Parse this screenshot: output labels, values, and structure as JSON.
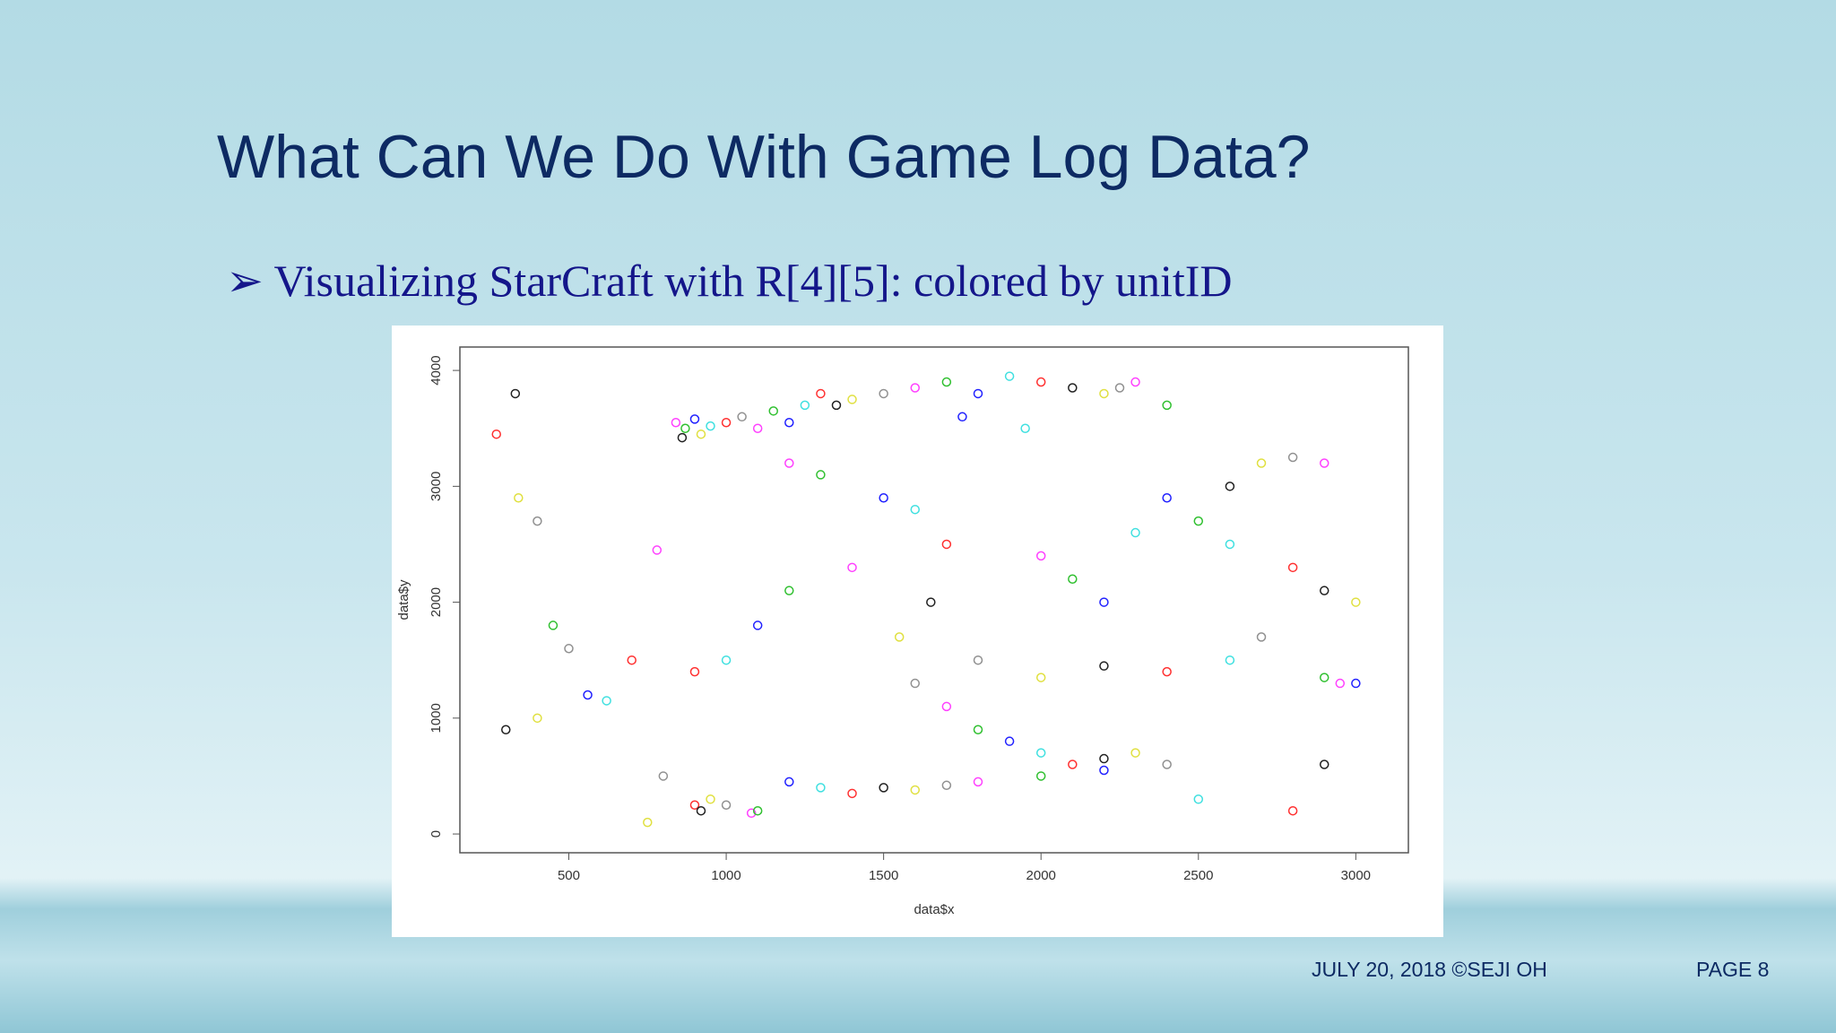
{
  "slide": {
    "title": "What Can We Do With Game Log Data?",
    "bullet": "Visualizing StarCraft with R[4][5]: colored by unitID",
    "footer": "JULY 20, 2018 ©SEJI OH",
    "page": "PAGE 8"
  },
  "chart_data": {
    "type": "scatter",
    "xlabel": "data$x",
    "ylabel": "data$y",
    "xlim": [
      154,
      3167
    ],
    "ylim": [
      -162,
      4202
    ],
    "xticks": [
      500,
      1000,
      1500,
      2000,
      2500,
      3000
    ],
    "yticks": [
      0,
      1000,
      2000,
      3000,
      4000
    ],
    "palette": [
      "#ff40ff",
      "#30c030",
      "#2020ff",
      "#40e0e0",
      "#ff3030",
      "#202020",
      "#e0e040",
      "#909090"
    ],
    "x": [
      840,
      870,
      900,
      950,
      1000,
      860,
      920,
      1050,
      1100,
      1150,
      1200,
      1250,
      1300,
      1350,
      1400,
      1500,
      1600,
      1700,
      1800,
      1900,
      2000,
      2100,
      2200,
      2250,
      2300,
      2400,
      1750,
      1950,
      270,
      330,
      340,
      400,
      780,
      450,
      560,
      620,
      700,
      300,
      400,
      500,
      1200,
      1300,
      1500,
      1600,
      1700,
      1650,
      1550,
      1600,
      1700,
      1800,
      1900,
      2000,
      2100,
      2200,
      2300,
      2400,
      1400,
      1200,
      1100,
      1000,
      900,
      2600,
      2700,
      2800,
      2900,
      2500,
      2400,
      2600,
      2800,
      2900,
      3000,
      2700,
      2950,
      2900,
      3000,
      2600,
      2400,
      2200,
      2000,
      1800,
      2000,
      2100,
      2200,
      2300,
      900,
      920,
      950,
      1000,
      1080,
      1100,
      1200,
      1300,
      1400,
      1500,
      1600,
      1700,
      1800,
      2000,
      2200,
      2500,
      2800,
      2900,
      750,
      800
    ],
    "values": [
      3550,
      3500,
      3580,
      3520,
      3550,
      3420,
      3450,
      3600,
      3500,
      3650,
      3550,
      3700,
      3800,
      3700,
      3750,
      3800,
      3850,
      3900,
      3800,
      3950,
      3900,
      3850,
      3800,
      3850,
      3900,
      3700,
      3600,
      3500,
      3450,
      3800,
      2900,
      2700,
      2450,
      1800,
      1200,
      1150,
      1500,
      900,
      1000,
      1600,
      3200,
      3100,
      2900,
      2800,
      2500,
      2000,
      1700,
      1300,
      1100,
      900,
      800,
      700,
      600,
      650,
      700,
      600,
      2300,
      2100,
      1800,
      1500,
      1400,
      3000,
      3200,
      3250,
      3200,
      2700,
      2900,
      2500,
      2300,
      2100,
      2000,
      1700,
      1300,
      1350,
      1300,
      1500,
      1400,
      1450,
      1350,
      1500,
      2400,
      2200,
      2000,
      2600,
      250,
      200,
      300,
      250,
      180,
      200,
      450,
      400,
      350,
      400,
      380,
      420,
      450,
      500,
      550,
      300,
      200,
      600,
      100,
      500
    ]
  }
}
